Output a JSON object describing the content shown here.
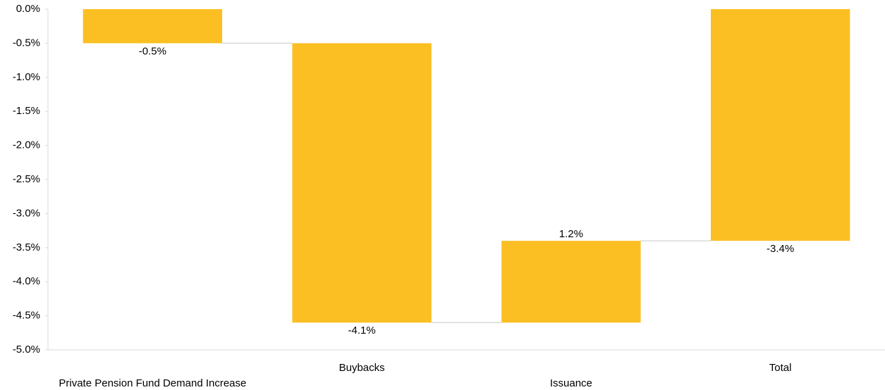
{
  "chart_data": {
    "type": "waterfall",
    "categories": [
      "Private Pension Fund Demand Increase",
      "Buybacks",
      "Issuance",
      "Total"
    ],
    "values": [
      -0.5,
      -4.1,
      1.2,
      -3.4
    ],
    "value_labels": [
      "-0.5%",
      "-4.1%",
      "1.2%",
      "-3.4%"
    ],
    "color": "#fbbf24",
    "ylim": [
      -5.0,
      0.0
    ],
    "yticks": [
      {
        "value": 0.0,
        "label": "0.0%"
      },
      {
        "value": -0.5,
        "label": "-0.5%"
      },
      {
        "value": -1.0,
        "label": "-1.0%"
      },
      {
        "value": -1.5,
        "label": "-1.5%"
      },
      {
        "value": -2.0,
        "label": "-2.0%"
      },
      {
        "value": -2.5,
        "label": "-2.5%"
      },
      {
        "value": -3.0,
        "label": "-3.0%"
      },
      {
        "value": -3.5,
        "label": "-3.5%"
      },
      {
        "value": -4.0,
        "label": "-4.0%"
      },
      {
        "value": -4.5,
        "label": "-4.5%"
      },
      {
        "value": -5.0,
        "label": "-5.0%"
      }
    ],
    "grid": false
  }
}
